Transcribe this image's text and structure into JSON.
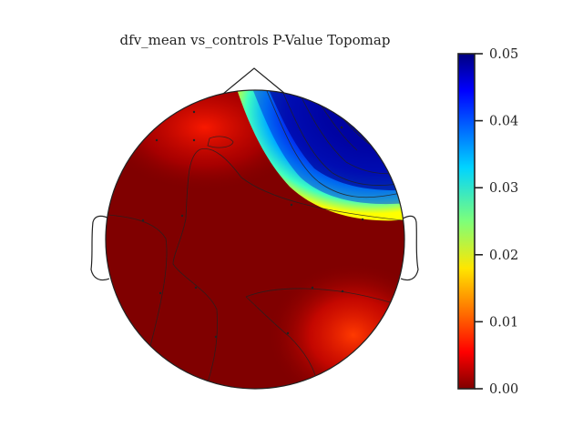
{
  "chart_data": {
    "type": "heatmap",
    "subtype": "eeg-topomap",
    "title": "dfv_mean vs_controls P-Value Topomap",
    "colormap": "jet_r",
    "colorbar": {
      "range": [
        0.0,
        0.05
      ],
      "ticks": [
        {
          "value": 0.05,
          "label": "0.05"
        },
        {
          "value": 0.04,
          "label": "0.04"
        },
        {
          "value": 0.03,
          "label": "0.03"
        },
        {
          "value": 0.02,
          "label": "0.02"
        },
        {
          "value": 0.01,
          "label": "0.01"
        },
        {
          "value": 0.0,
          "label": "0.00"
        }
      ],
      "placement": "right"
    },
    "colors": {
      "p_000": "#800000",
      "p_005": "#ff2000",
      "p_010": "#ff6a00",
      "p_020": "#ffff00",
      "p_030": "#33ffcc",
      "p_040": "#0070ff",
      "p_050": "#000080"
    },
    "regions": [
      {
        "name": "frontal-right",
        "approx_p": 0.05
      },
      {
        "name": "frontal-left",
        "approx_p": 0.005
      },
      {
        "name": "central-posterior",
        "approx_p": 0.0
      },
      {
        "name": "right-parietal",
        "approx_p": 0.008
      }
    ],
    "grid": false
  }
}
